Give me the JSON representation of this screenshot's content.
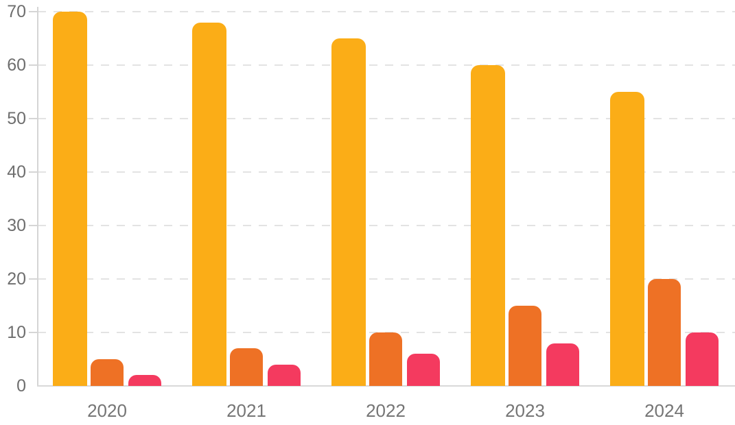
{
  "chart_data": {
    "type": "bar",
    "title": "",
    "xlabel": "",
    "ylabel": "",
    "categories": [
      "2020",
      "2021",
      "2022",
      "2023",
      "2024"
    ],
    "series": [
      {
        "name": "amber-series",
        "color": "#FBAD17",
        "values": [
          70,
          68,
          65,
          60,
          55
        ]
      },
      {
        "name": "orange-series",
        "color": "#EE7125",
        "values": [
          5,
          7,
          10,
          15,
          20
        ]
      },
      {
        "name": "rose-series",
        "color": "#F43A5F",
        "values": [
          2,
          4,
          6,
          8,
          10
        ]
      }
    ],
    "ylim": [
      0,
      70
    ],
    "yticks": [
      0,
      10,
      20,
      30,
      40,
      50,
      60,
      70
    ],
    "grid": "horizontal-dashed",
    "legend_position": "none"
  },
  "style": {
    "background": "#FFFFFF",
    "axis_color": "#D5D5D5",
    "grid_color": "#E3E3E3",
    "tick_label_color": "#6E6E6E",
    "category_label_color": "#757575"
  }
}
